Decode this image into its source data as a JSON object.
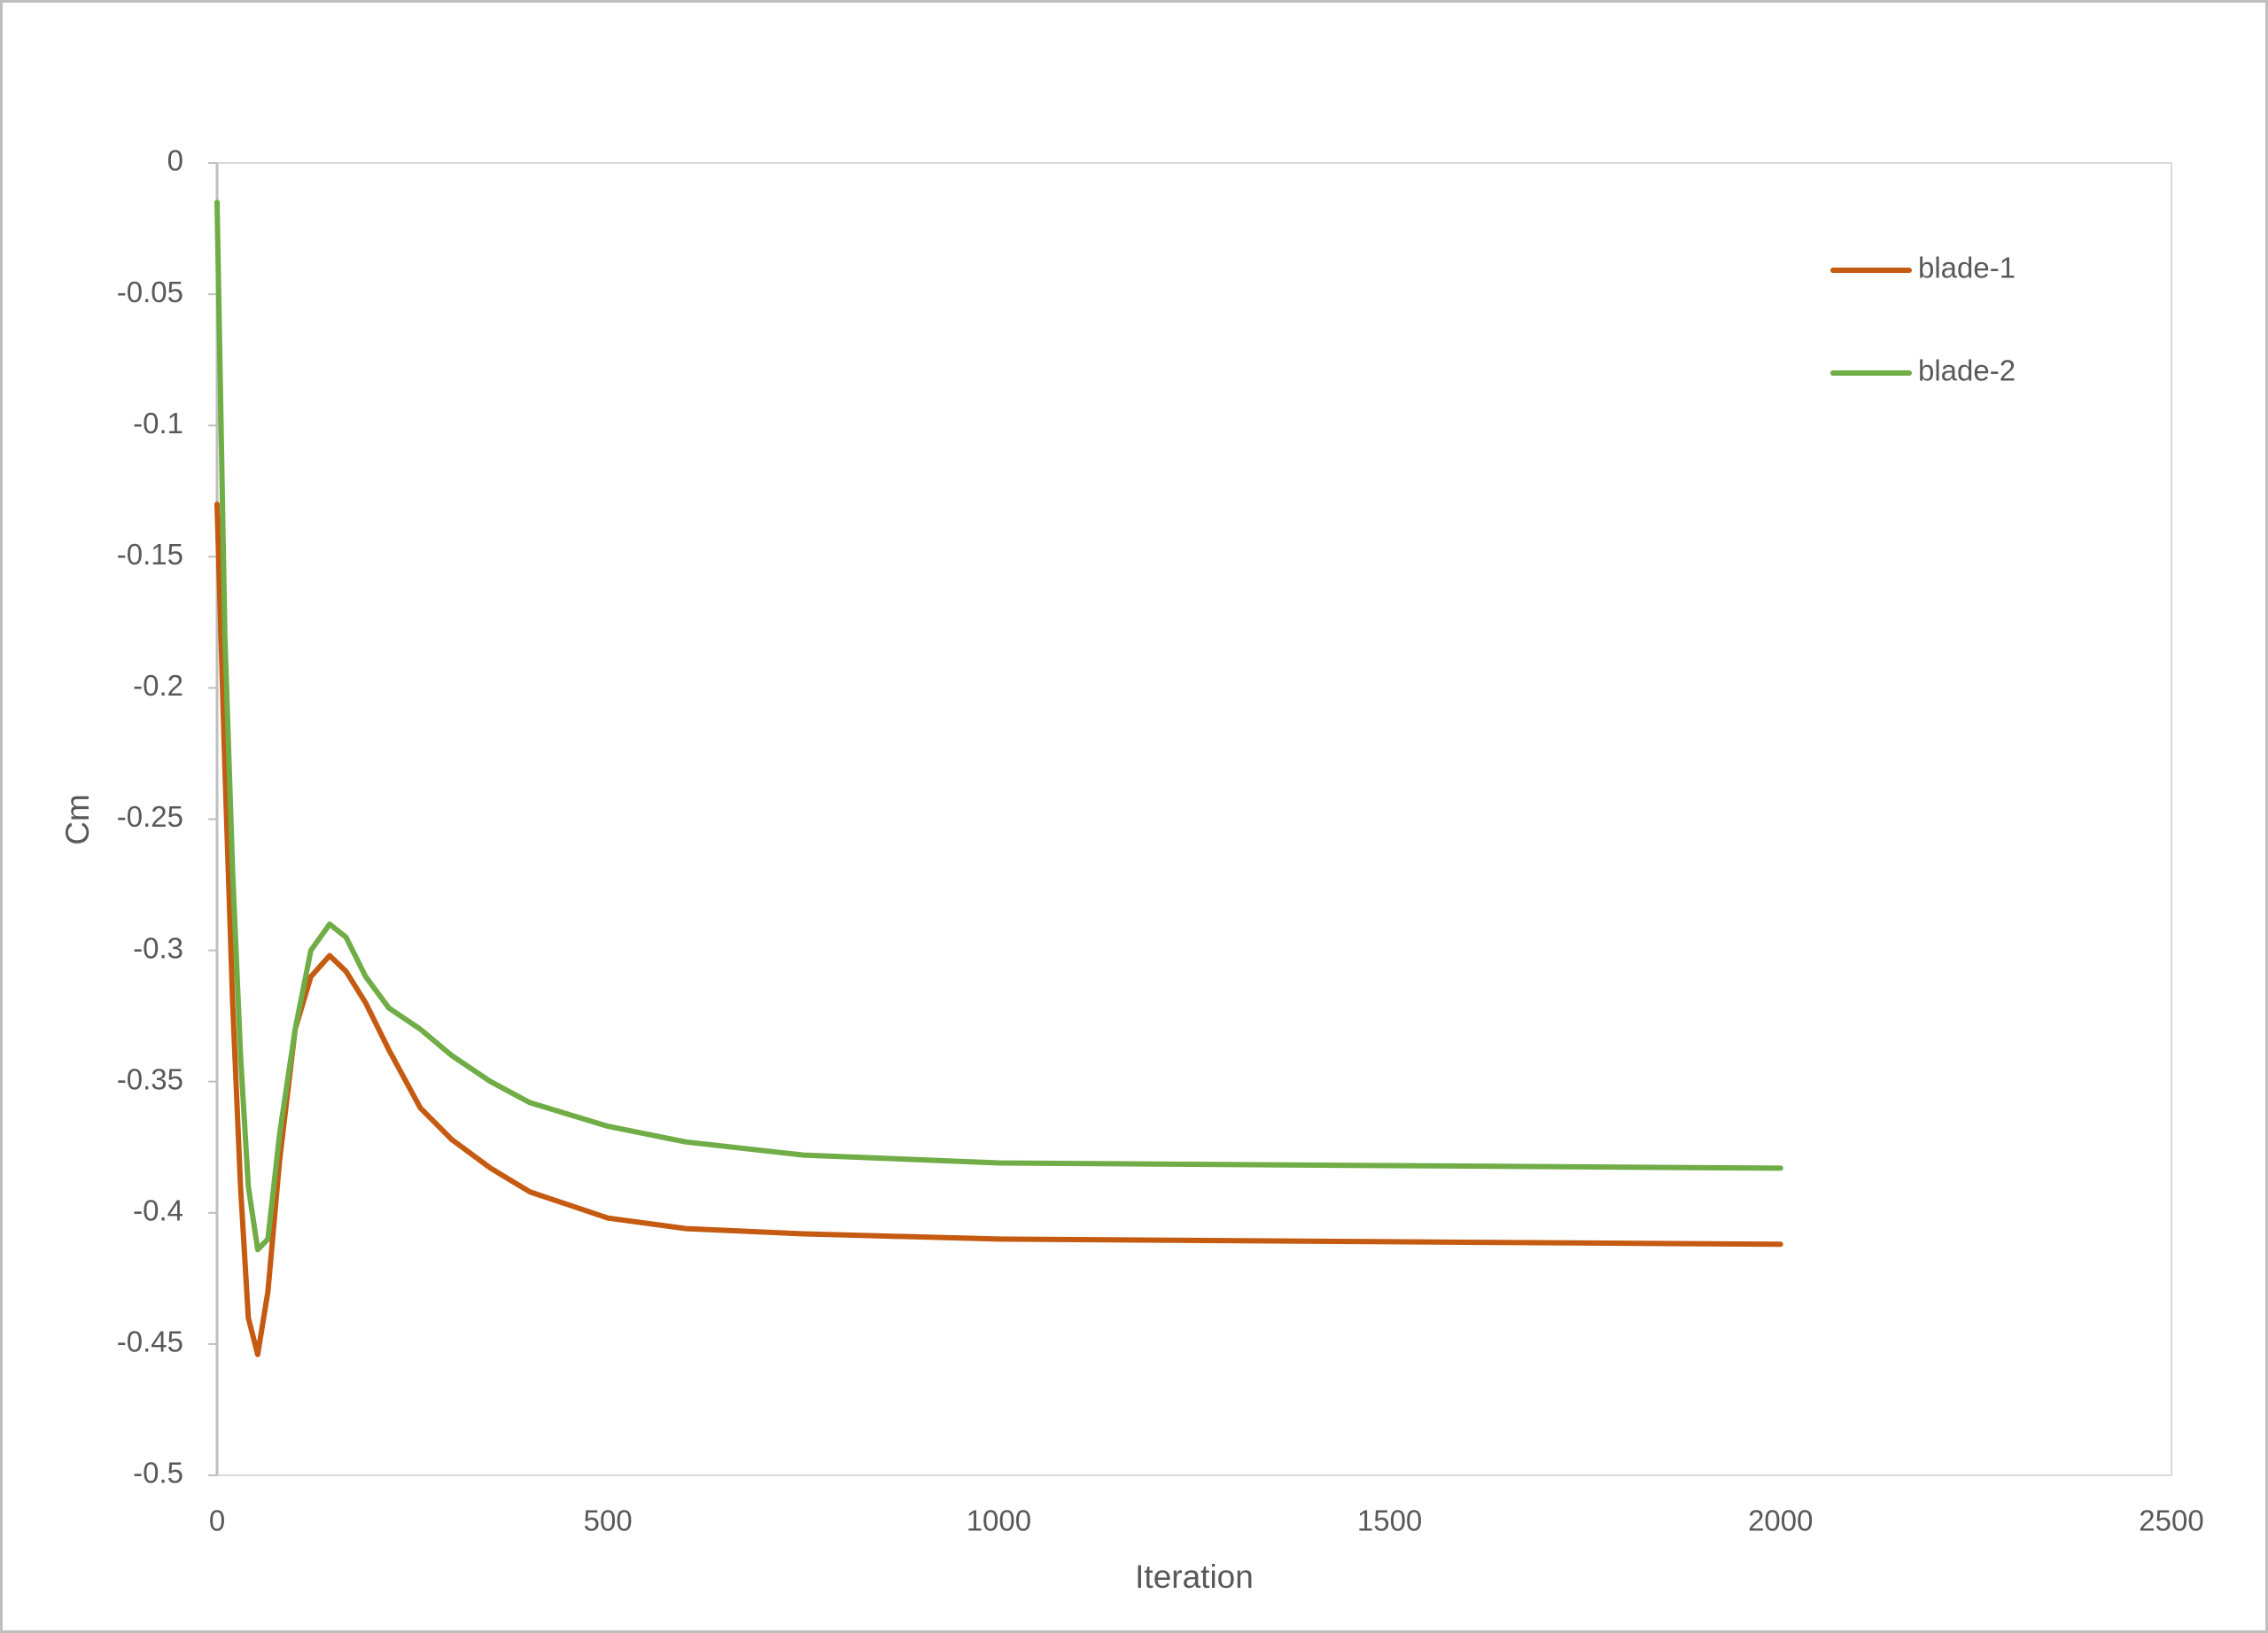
{
  "chart_data": {
    "type": "line",
    "xlabel": "Iteration",
    "ylabel": "Cm",
    "x": [
      0,
      10,
      20,
      30,
      40,
      52,
      65,
      80,
      100,
      120,
      144,
      165,
      190,
      220,
      260,
      300,
      350,
      400,
      500,
      600,
      750,
      1000,
      1500,
      2000
    ],
    "series": [
      {
        "name": "blade-1",
        "color": "#c55a11",
        "values": [
          -0.13,
          -0.23,
          -0.32,
          -0.39,
          -0.44,
          -0.454,
          -0.43,
          -0.38,
          -0.33,
          -0.31,
          -0.302,
          -0.308,
          -0.32,
          -0.338,
          -0.36,
          -0.372,
          -0.383,
          -0.392,
          -0.402,
          -0.406,
          -0.408,
          -0.41,
          -0.411,
          -0.412
        ]
      },
      {
        "name": "blade-2",
        "color": "#70ad47",
        "values": [
          -0.015,
          -0.18,
          -0.27,
          -0.34,
          -0.39,
          -0.414,
          -0.41,
          -0.37,
          -0.33,
          -0.3,
          -0.29,
          -0.295,
          -0.31,
          -0.322,
          -0.33,
          -0.34,
          -0.35,
          -0.358,
          -0.367,
          -0.373,
          -0.378,
          -0.381,
          -0.382,
          -0.383
        ]
      }
    ],
    "xlim": [
      0,
      2500
    ],
    "xticks": [
      0,
      500,
      1000,
      1500,
      2000,
      2500
    ],
    "ylim": [
      -0.5,
      0
    ],
    "yticks": [
      -0.5,
      -0.45,
      -0.4,
      -0.35,
      -0.3,
      -0.25,
      -0.2,
      -0.15,
      -0.1,
      -0.05,
      0
    ],
    "grid": false,
    "legend": "upper right"
  }
}
